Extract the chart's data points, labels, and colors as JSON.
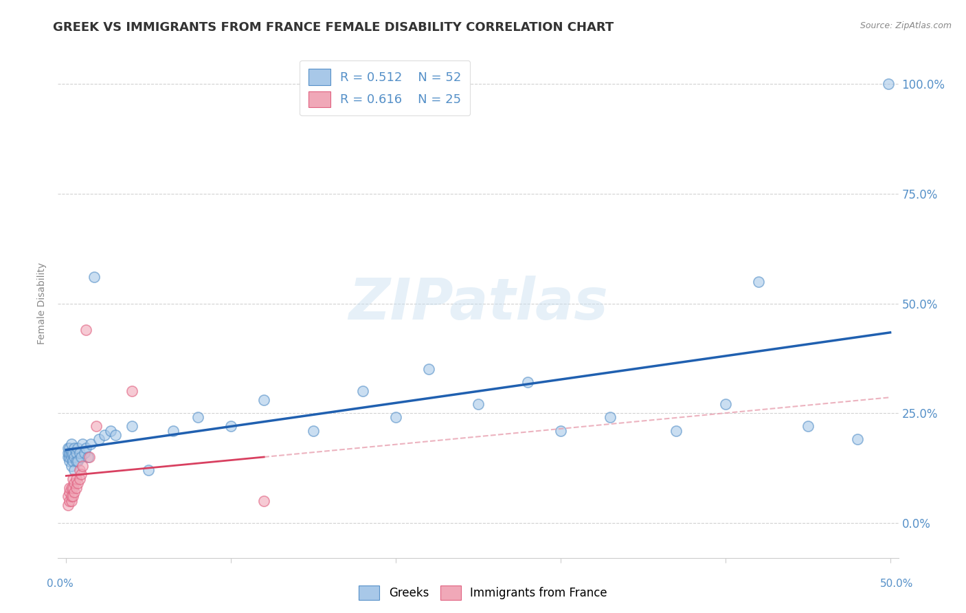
{
  "title": "GREEK VS IMMIGRANTS FROM FRANCE FEMALE DISABILITY CORRELATION CHART",
  "source_text": "Source: ZipAtlas.com",
  "ylabel": "Female Disability",
  "xlim": [
    -0.005,
    0.505
  ],
  "ylim": [
    -0.08,
    1.08
  ],
  "xtick_values": [
    0.0,
    0.1,
    0.2,
    0.3,
    0.4,
    0.5
  ],
  "ytick_labels": [
    "0.0%",
    "25.0%",
    "50.0%",
    "75.0%",
    "100.0%"
  ],
  "ytick_values": [
    0.0,
    0.25,
    0.5,
    0.75,
    1.0
  ],
  "legend_r1": "R = 0.512",
  "legend_n1": "N = 52",
  "legend_r2": "R = 0.616",
  "legend_n2": "N = 25",
  "greek_color": "#a8c8e8",
  "france_color": "#f0a8b8",
  "greek_edge_color": "#5590c8",
  "france_edge_color": "#e06080",
  "greek_line_color": "#2060b0",
  "france_line_color": "#d84060",
  "france_dash_color": "#e8a0b0",
  "watermark": "ZIPatlas",
  "title_color": "#333333",
  "title_fontsize": 13,
  "axis_tick_color": "#5590c8",
  "source_color": "#888888",
  "background_color": "#ffffff",
  "greek_x": [
    0.001,
    0.001,
    0.001,
    0.002,
    0.002,
    0.002,
    0.002,
    0.003,
    0.003,
    0.003,
    0.003,
    0.004,
    0.004,
    0.005,
    0.005,
    0.005,
    0.006,
    0.006,
    0.007,
    0.007,
    0.008,
    0.009,
    0.01,
    0.011,
    0.012,
    0.013,
    0.015,
    0.017,
    0.02,
    0.023,
    0.027,
    0.03,
    0.04,
    0.05,
    0.065,
    0.08,
    0.1,
    0.12,
    0.15,
    0.18,
    0.2,
    0.22,
    0.25,
    0.28,
    0.3,
    0.33,
    0.37,
    0.4,
    0.42,
    0.45,
    0.48,
    0.499
  ],
  "greek_y": [
    0.15,
    0.16,
    0.17,
    0.14,
    0.15,
    0.16,
    0.17,
    0.13,
    0.15,
    0.16,
    0.18,
    0.14,
    0.16,
    0.12,
    0.15,
    0.17,
    0.14,
    0.16,
    0.14,
    0.17,
    0.16,
    0.15,
    0.18,
    0.16,
    0.17,
    0.15,
    0.18,
    0.56,
    0.19,
    0.2,
    0.21,
    0.2,
    0.22,
    0.12,
    0.21,
    0.24,
    0.22,
    0.28,
    0.21,
    0.3,
    0.24,
    0.35,
    0.27,
    0.32,
    0.21,
    0.24,
    0.21,
    0.27,
    0.55,
    0.22,
    0.19,
    1.0
  ],
  "france_x": [
    0.001,
    0.001,
    0.002,
    0.002,
    0.002,
    0.003,
    0.003,
    0.003,
    0.004,
    0.004,
    0.004,
    0.005,
    0.005,
    0.006,
    0.006,
    0.007,
    0.008,
    0.008,
    0.009,
    0.01,
    0.012,
    0.014,
    0.018,
    0.04,
    0.12
  ],
  "france_y": [
    0.04,
    0.06,
    0.05,
    0.07,
    0.08,
    0.05,
    0.06,
    0.08,
    0.06,
    0.08,
    0.1,
    0.07,
    0.09,
    0.08,
    0.1,
    0.09,
    0.1,
    0.12,
    0.11,
    0.13,
    0.44,
    0.15,
    0.22,
    0.3,
    0.05
  ]
}
